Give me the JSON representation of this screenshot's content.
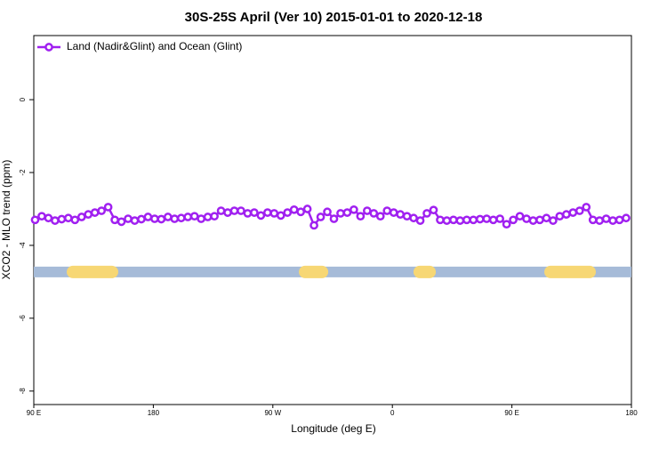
{
  "chart_data": {
    "type": "line",
    "title": "30S-25S April (Ver 10)   2015-01-01 to 2020-12-18",
    "xlabel": "Longitude (deg E)",
    "ylabel": "XCO2 - MLO trend (ppm)",
    "xlim": [
      90,
      540
    ],
    "xticks": [
      {
        "value": 90,
        "label": "90 E"
      },
      180,
      {
        "value": 270,
        "label": "90 W"
      },
      {
        "value": 360,
        "label": "0"
      },
      {
        "value": 450,
        "label": "90 E"
      },
      {
        "value": 540,
        "label": "180"
      }
    ],
    "ylim": [
      -8.37,
      1.76
    ],
    "yticks": [
      0,
      -2,
      -4,
      -6,
      -8
    ],
    "legend": "top-left",
    "x": [
      91,
      96,
      101,
      106,
      111,
      116,
      121,
      126,
      131,
      136,
      141,
      146,
      151,
      156,
      161,
      166,
      171,
      176,
      181,
      186,
      191,
      196,
      201,
      206,
      211,
      216,
      221,
      226,
      231,
      236,
      241,
      246,
      251,
      256,
      261,
      266,
      271,
      276,
      281,
      286,
      291,
      296,
      301,
      306,
      311,
      316,
      321,
      326,
      331,
      336,
      341,
      346,
      351,
      356,
      361,
      366,
      371,
      376,
      381,
      386,
      391,
      396,
      401,
      406,
      411,
      416,
      421,
      426,
      431,
      436,
      441,
      446,
      451,
      456,
      461,
      466,
      471,
      476,
      481,
      486,
      491,
      496,
      501,
      506,
      511,
      516,
      521,
      526,
      531,
      536
    ],
    "series": [
      {
        "name": "Land (Nadir&Glint) and Ocean (Glint)",
        "color": "#a020f0",
        "values": [
          -3.3,
          -3.2,
          -3.25,
          -3.32,
          -3.28,
          -3.25,
          -3.3,
          -3.22,
          -3.15,
          -3.1,
          -3.05,
          -2.95,
          -3.3,
          -3.35,
          -3.27,
          -3.32,
          -3.28,
          -3.22,
          -3.27,
          -3.28,
          -3.22,
          -3.27,
          -3.25,
          -3.22,
          -3.2,
          -3.27,
          -3.22,
          -3.2,
          -3.05,
          -3.1,
          -3.05,
          -3.05,
          -3.12,
          -3.1,
          -3.18,
          -3.1,
          -3.12,
          -3.18,
          -3.1,
          -3.02,
          -3.08,
          -3.0,
          -3.45,
          -3.22,
          -3.08,
          -3.27,
          -3.12,
          -3.1,
          -3.02,
          -3.2,
          -3.05,
          -3.12,
          -3.2,
          -3.05,
          -3.1,
          -3.15,
          -3.2,
          -3.25,
          -3.32,
          -3.12,
          -3.03,
          -3.3,
          -3.32,
          -3.3,
          -3.32,
          -3.3,
          -3.3,
          -3.28,
          -3.27,
          -3.3,
          -3.27,
          -3.42,
          -3.3,
          -3.2,
          -3.27,
          -3.32,
          -3.3,
          -3.25,
          -3.32,
          -3.2,
          -3.15,
          -3.1,
          -3.05,
          -2.95,
          -3.3,
          -3.32,
          -3.27,
          -3.32,
          -3.3,
          -3.25
        ]
      }
    ],
    "surface_band": {
      "y": -4.73,
      "extent": [
        90,
        540
      ],
      "color": "#a6bbd8",
      "land_color": "#f7d774",
      "land": [
        [
          114.8,
          153.6
        ],
        [
          289.6,
          311.7
        ],
        [
          375.9,
          392.7
        ],
        [
          474.4,
          513.2
        ]
      ]
    }
  }
}
